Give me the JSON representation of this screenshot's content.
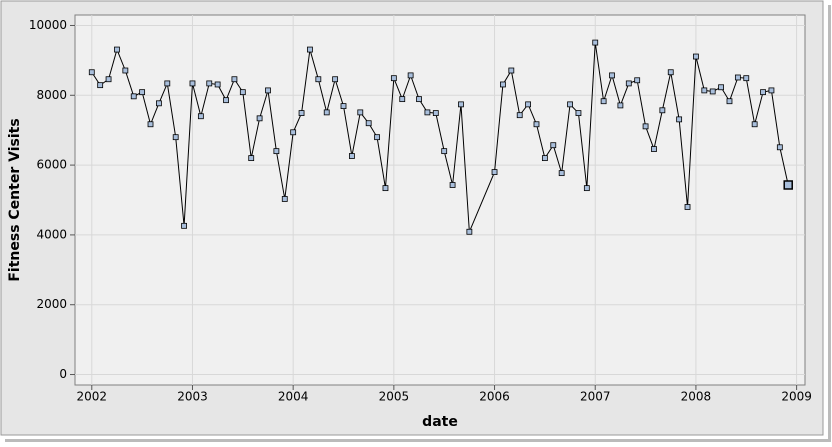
{
  "chart_data": {
    "type": "line",
    "x_label": "date",
    "y_label": "Fitness Center Visits",
    "x": [
      "2002-01",
      "2002-02",
      "2002-03",
      "2002-04",
      "2002-05",
      "2002-06",
      "2002-07",
      "2002-08",
      "2002-09",
      "2002-10",
      "2002-11",
      "2002-12",
      "2003-01",
      "2003-02",
      "2003-03",
      "2003-04",
      "2003-05",
      "2003-06",
      "2003-07",
      "2003-08",
      "2003-09",
      "2003-10",
      "2003-11",
      "2003-12",
      "2004-01",
      "2004-02",
      "2004-03",
      "2004-04",
      "2004-05",
      "2004-06",
      "2004-07",
      "2004-08",
      "2004-09",
      "2004-10",
      "2004-11",
      "2004-12",
      "2005-01",
      "2005-02",
      "2005-03",
      "2005-04",
      "2005-05",
      "2005-06",
      "2005-07",
      "2005-08",
      "2005-09",
      "2005-10",
      "2006-01",
      "2006-02",
      "2006-03",
      "2006-04",
      "2006-05",
      "2006-06",
      "2006-07",
      "2006-08",
      "2006-09",
      "2006-10",
      "2006-11",
      "2006-12",
      "2007-01",
      "2007-02",
      "2007-03",
      "2007-04",
      "2007-05",
      "2007-06",
      "2007-07",
      "2007-08",
      "2007-09",
      "2007-10",
      "2007-11",
      "2007-12",
      "2008-01",
      "2008-02",
      "2008-03",
      "2008-04",
      "2008-05",
      "2008-06",
      "2008-07",
      "2008-08",
      "2008-09",
      "2008-10",
      "2008-11",
      "2008-12"
    ],
    "series": [
      {
        "name": "Fitness Center Visits",
        "color": "#000000",
        "marker_color": "#a9bfdc",
        "values": [
          8660,
          8290,
          8460,
          9310,
          8710,
          7970,
          8090,
          7170,
          7770,
          8340,
          6800,
          4260,
          8340,
          7400,
          8340,
          8310,
          7860,
          8460,
          8090,
          6200,
          7340,
          8140,
          6400,
          5030,
          6940,
          7490,
          9310,
          8460,
          7510,
          8460,
          7690,
          6260,
          7510,
          7200,
          6800,
          5340,
          8490,
          7890,
          8570,
          7890,
          7510,
          7490,
          6400,
          5430,
          7740,
          4090,
          5800,
          8310,
          8710,
          7430,
          7740,
          7170,
          6200,
          6570,
          5770,
          7740,
          7490,
          5340,
          9510,
          7830,
          8570,
          7710,
          8340,
          8430,
          7110,
          6460,
          7570,
          8660,
          7310,
          4800,
          9110,
          8140,
          8110,
          8230,
          7830,
          8510,
          8490,
          7170,
          8090,
          8140,
          6510,
          5430
        ]
      }
    ],
    "xlim": [
      "2001-11",
      "2009-02"
    ],
    "xticks": [
      "2002",
      "2003",
      "2004",
      "2005",
      "2006",
      "2007",
      "2008",
      "2009"
    ],
    "ylim": [
      -300,
      10300
    ],
    "yticks": [
      0,
      2000,
      4000,
      6000,
      8000,
      10000
    ],
    "grid": true
  }
}
